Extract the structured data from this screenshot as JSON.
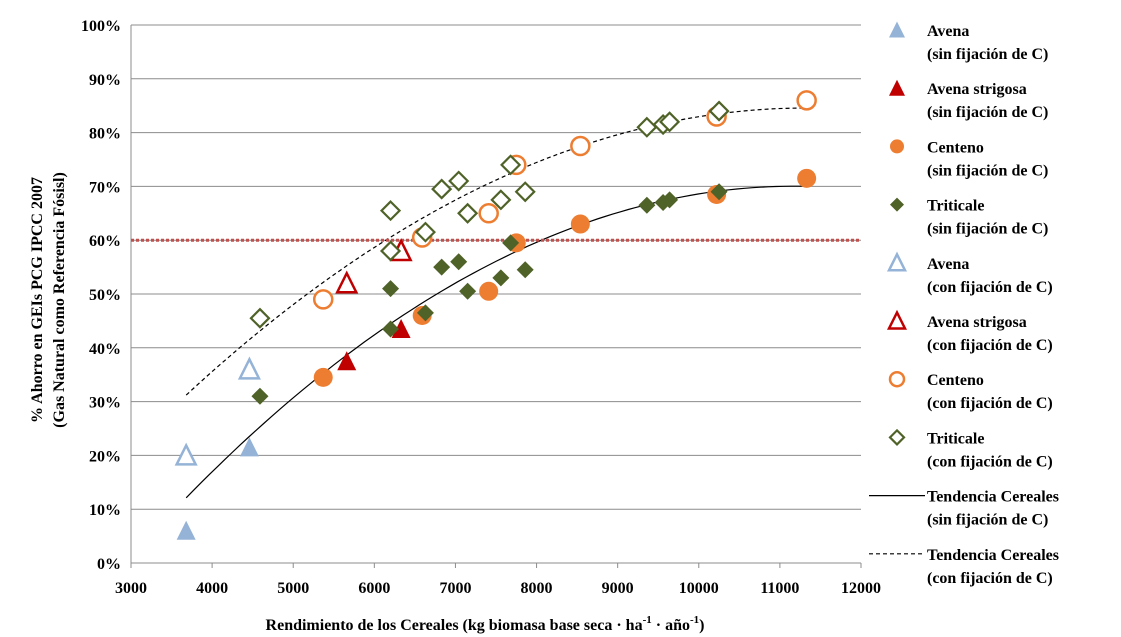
{
  "chart_data": {
    "type": "scatter",
    "title": "",
    "xlabel": {
      "prefix": "Rendimiento  de los  Cereales  (kg biomasa  base seca · ha",
      "sup1": "-1",
      "mid": " · año",
      "sup2": "-1",
      "suffix": ")"
    },
    "ylabel": [
      "% Ahorro  en GEIs PCG IPCC 2007",
      "(Gas Natural  como Referencia Fósisl)"
    ],
    "xlim": [
      3000,
      12000
    ],
    "ylim": [
      0,
      100
    ],
    "x_ticks": [
      3000,
      4000,
      5000,
      6000,
      7000,
      8000,
      9000,
      10000,
      11000,
      12000
    ],
    "y_ticks": [
      0,
      10,
      20,
      30,
      40,
      50,
      60,
      70,
      80,
      90,
      100
    ],
    "y_tick_suffix": "%",
    "grid": "horizontal",
    "legend_position": "right",
    "reference_line": {
      "y": 60,
      "color": "#c0504d",
      "style": "dotted"
    },
    "series": [
      {
        "name": "Avena",
        "name_line2": "(sin fijación de C)",
        "marker": "triangle",
        "filled": true,
        "color": "#95b3d7",
        "points": [
          [
            3680,
            6
          ],
          [
            4460,
            21.5
          ]
        ]
      },
      {
        "name": "Avena strigosa",
        "name_line2": "(sin fijación de C)",
        "marker": "triangle",
        "filled": true,
        "color": "#c00000",
        "points": [
          [
            5660,
            37.5
          ],
          [
            6330,
            43.5
          ]
        ]
      },
      {
        "name": "Centeno",
        "name_line2": "(sin fijación de C)",
        "marker": "circle",
        "filled": true,
        "color": "#ed7d31",
        "points": [
          [
            5370,
            34.5
          ],
          [
            6590,
            46
          ],
          [
            7410,
            50.5
          ],
          [
            7750,
            59.5
          ],
          [
            8540,
            63
          ],
          [
            10220,
            68.5
          ],
          [
            11330,
            71.5
          ]
        ]
      },
      {
        "name": "Triticale",
        "name_line2": "(sin fijación de C)",
        "marker": "diamond",
        "filled": true,
        "color": "#4f6228",
        "points": [
          [
            4590,
            31
          ],
          [
            6200,
            43.5
          ],
          [
            6200,
            51
          ],
          [
            6630,
            46.5
          ],
          [
            6830,
            55
          ],
          [
            7040,
            56
          ],
          [
            7150,
            50.5
          ],
          [
            7560,
            53
          ],
          [
            7680,
            59.5
          ],
          [
            7860,
            54.5
          ],
          [
            9360,
            66.5
          ],
          [
            9560,
            67
          ],
          [
            9640,
            67.5
          ],
          [
            10250,
            69
          ]
        ]
      },
      {
        "name": "Avena",
        "name_line2": "(con fijación de C)",
        "marker": "triangle",
        "filled": false,
        "color": "#95b3d7",
        "points": [
          [
            3680,
            20
          ],
          [
            4460,
            36
          ]
        ]
      },
      {
        "name": "Avena strigosa",
        "name_line2": "(con fijación de C)",
        "marker": "triangle",
        "filled": false,
        "color": "#c00000",
        "points": [
          [
            5660,
            52
          ],
          [
            6330,
            58
          ]
        ]
      },
      {
        "name": "Centeno",
        "name_line2": "(con fijación de C)",
        "marker": "circle",
        "filled": false,
        "color": "#ed7d31",
        "points": [
          [
            5370,
            49
          ],
          [
            6590,
            60.5
          ],
          [
            7410,
            65
          ],
          [
            7750,
            74
          ],
          [
            8540,
            77.5
          ],
          [
            10220,
            83
          ],
          [
            11330,
            86
          ]
        ]
      },
      {
        "name": "Triticale",
        "name_line2": "(con fijación de C)",
        "marker": "diamond",
        "filled": false,
        "color": "#4f6228",
        "points": [
          [
            4590,
            45.5
          ],
          [
            6200,
            58
          ],
          [
            6200,
            65.5
          ],
          [
            6630,
            61.5
          ],
          [
            6830,
            69.5
          ],
          [
            7040,
            71
          ],
          [
            7150,
            65
          ],
          [
            7560,
            67.5
          ],
          [
            7680,
            74
          ],
          [
            7860,
            69
          ],
          [
            9360,
            81
          ],
          [
            9560,
            81.5
          ],
          [
            9640,
            82
          ],
          [
            10250,
            84
          ]
        ]
      },
      {
        "name": "Tendencia Cereales",
        "name_line2": "(sin fijación de C)",
        "marker": "line",
        "dash": "solid",
        "color": "#000000",
        "fit_x": [
          3680,
          11330
        ],
        "coef": [
          -1.028e-06,
          0.023,
          -58.6
        ]
      },
      {
        "name": "Tendencia Cereales",
        "name_line2": "(con fijación de C)",
        "marker": "line",
        "dash": "dashed",
        "color": "#000000",
        "fit_x": [
          3680,
          11330
        ],
        "coef": [
          -9.11e-07,
          0.02065,
          -32.45
        ]
      }
    ]
  }
}
